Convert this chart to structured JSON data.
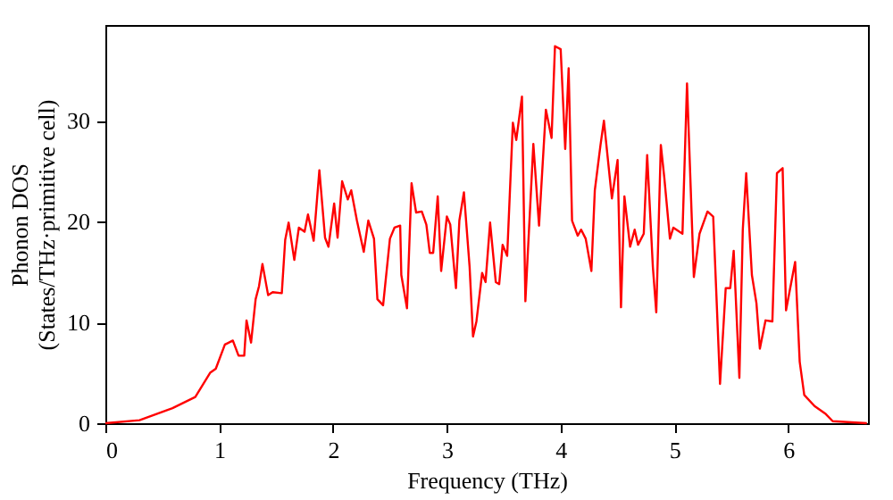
{
  "chart_data": {
    "type": "line",
    "xlabel": "Frequency (THz)",
    "ylabel": "Phonon DOS\n(States/THz·primitive cell)",
    "xlim": [
      0,
      6.7
    ],
    "ylim": [
      0,
      39.5
    ],
    "xticks": [
      0,
      1,
      2,
      3,
      4,
      5,
      6
    ],
    "yticks": [
      0,
      10,
      20,
      30
    ],
    "grid": false,
    "series": [
      {
        "color": "#ff0000",
        "x": [
          0,
          0.3,
          0.59,
          0.79,
          0.92,
          0.97,
          1.05,
          1.12,
          1.17,
          1.22,
          1.24,
          1.28,
          1.32,
          1.35,
          1.38,
          1.43,
          1.47,
          1.55,
          1.58,
          1.61,
          1.66,
          1.7,
          1.75,
          1.78,
          1.83,
          1.88,
          1.93,
          1.96,
          2.01,
          2.04,
          2.08,
          2.13,
          2.16,
          2.21,
          2.27,
          2.31,
          2.36,
          2.39,
          2.44,
          2.5,
          2.54,
          2.59,
          2.6,
          2.65,
          2.69,
          2.73,
          2.78,
          2.82,
          2.85,
          2.88,
          2.92,
          2.95,
          3.0,
          3.03,
          3.08,
          3.11,
          3.15,
          3.2,
          3.23,
          3.26,
          3.31,
          3.34,
          3.38,
          3.43,
          3.46,
          3.49,
          3.53,
          3.58,
          3.61,
          3.66,
          3.69,
          3.76,
          3.81,
          3.87,
          3.92,
          3.95,
          4.0,
          4.04,
          4.07,
          4.1,
          4.15,
          4.18,
          4.22,
          4.27,
          4.3,
          4.35,
          4.38,
          4.45,
          4.5,
          4.53,
          4.56,
          4.61,
          4.65,
          4.68,
          4.73,
          4.76,
          4.81,
          4.84,
          4.88,
          4.91,
          4.96,
          4.99,
          5.07,
          5.11,
          5.17,
          5.22,
          5.29,
          5.34,
          5.4,
          5.45,
          5.49,
          5.52,
          5.57,
          5.6,
          5.63,
          5.68,
          5.72,
          5.75,
          5.8,
          5.86,
          5.9,
          5.95,
          5.98,
          6.06,
          6.1,
          6.14,
          6.23,
          6.33,
          6.39,
          6.69
        ],
        "values": [
          0,
          0.3,
          1.5,
          2.6,
          5.0,
          5.4,
          7.8,
          8.2,
          6.7,
          6.7,
          10.2,
          8.0,
          12.3,
          13.6,
          15.8,
          12.7,
          13.0,
          12.9,
          18.2,
          19.9,
          16.2,
          19.4,
          19.0,
          20.7,
          18.1,
          25.1,
          18.4,
          17.5,
          21.8,
          18.4,
          24.0,
          22.2,
          23.1,
          20.1,
          17.0,
          20.1,
          18.3,
          12.3,
          11.7,
          18.3,
          19.4,
          19.6,
          14.7,
          11.4,
          23.8,
          20.9,
          21.0,
          19.7,
          16.9,
          16.9,
          22.5,
          15.1,
          20.5,
          19.7,
          13.4,
          20.1,
          22.9,
          15.5,
          8.6,
          10.1,
          14.9,
          14.0,
          19.9,
          14.0,
          13.8,
          17.7,
          16.6,
          29.8,
          28.1,
          32.4,
          12.1,
          27.7,
          19.6,
          31.1,
          28.3,
          37.4,
          37.1,
          27.2,
          35.2,
          20.1,
          18.6,
          19.2,
          18.3,
          15.1,
          23.1,
          27.6,
          30.0,
          22.3,
          26.1,
          11.5,
          22.5,
          17.5,
          19.2,
          17.7,
          18.8,
          26.6,
          15.5,
          11.0,
          27.6,
          24.4,
          18.3,
          19.4,
          18.8,
          33.7,
          14.5,
          18.8,
          21.0,
          20.5,
          3.9,
          13.4,
          13.4,
          17.1,
          4.5,
          19.2,
          24.8,
          14.7,
          11.9,
          7.4,
          10.2,
          10.1,
          24.8,
          25.3,
          11.2,
          16.0,
          6.1,
          2.8,
          1.7,
          0.9,
          0.2,
          0
        ]
      }
    ]
  }
}
